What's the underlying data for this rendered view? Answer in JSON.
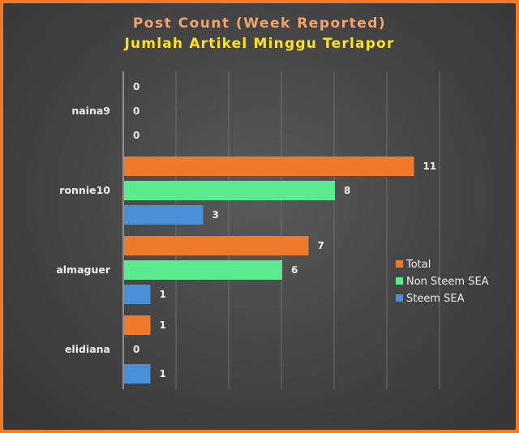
{
  "chart_data": {
    "type": "bar",
    "orientation": "horizontal",
    "title": "Post Count (Week Reported)",
    "subtitle": "Jumlah Artikel Minggu Terlapor",
    "categories": [
      "naina9",
      "ronnie10",
      "almaguer",
      "elidiana"
    ],
    "series": [
      {
        "name": "Total",
        "color": "#f07a2a",
        "values": [
          0,
          11,
          7,
          1
        ]
      },
      {
        "name": "Non Steem SEA",
        "color": "#5bea8f",
        "values": [
          0,
          8,
          6,
          0
        ]
      },
      {
        "name": "Steem SEA",
        "color": "#4a90d9",
        "values": [
          0,
          3,
          1,
          1
        ]
      }
    ],
    "xlim": [
      0,
      12
    ],
    "grid": true,
    "legend": "right"
  }
}
